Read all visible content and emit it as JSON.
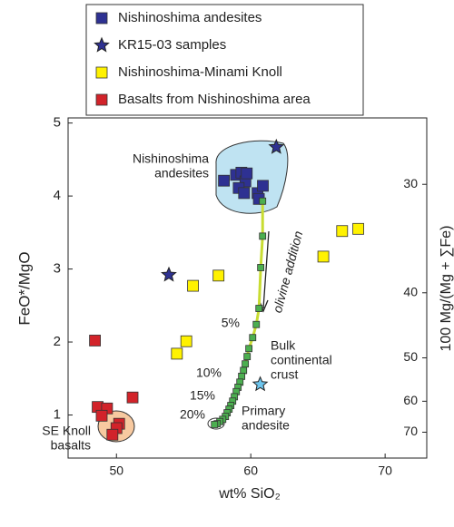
{
  "chart_data": {
    "type": "scatter",
    "x_label": "wt% SiO₂",
    "y_label": "FeO*/MgO",
    "y2_label": "100 Mg/(Mg + ∑Fe)",
    "xlim": [
      46.4,
      73.1
    ],
    "xticks": [
      50,
      60,
      70
    ],
    "ylim": [
      0.41,
      5.07
    ],
    "yticks": [
      1,
      2,
      3,
      4,
      5
    ],
    "y2ticks": [
      30,
      40,
      50,
      60,
      70
    ],
    "series": [
      {
        "name": "Nishinoshima andesites",
        "marker": "square",
        "color": "#2e3192",
        "x": [
          58.0,
          58.9,
          59.3,
          59.6,
          59.1,
          59.5,
          60.5,
          60.9,
          60.6,
          59.7
        ],
        "values": [
          4.21,
          4.29,
          4.32,
          4.2,
          4.11,
          4.04,
          4.04,
          4.14,
          3.96,
          4.31
        ]
      },
      {
        "name": "KR15-03 samples",
        "marker": "star",
        "color": "#2e3192",
        "x": [
          61.9,
          53.9
        ],
        "values": [
          4.67,
          2.92
        ]
      },
      {
        "name": "Nishinoshima-Minami Knoll",
        "marker": "square",
        "color": "#fff200",
        "x": [
          57.6,
          55.7,
          55.2,
          54.5,
          65.4,
          66.8,
          68.0
        ],
        "values": [
          2.91,
          2.77,
          2.01,
          1.84,
          3.17,
          3.52,
          3.55
        ]
      },
      {
        "name": "Basalts from Nishinoshima area",
        "marker": "square",
        "color": "#d2232a",
        "x": [
          48.4,
          48.6,
          49.3,
          51.2,
          48.9,
          50.2,
          50.0,
          49.7
        ],
        "values": [
          2.02,
          1.11,
          1.09,
          1.24,
          0.99,
          0.88,
          0.82,
          0.73
        ]
      },
      {
        "marker": "small-square",
        "color": "#4caf50",
        "line_color": "#c8dc32",
        "x": [
          60.88,
          60.88,
          60.74,
          60.61,
          60.41,
          60.14,
          59.86,
          59.73,
          59.59,
          59.46,
          59.32,
          59.19,
          59.05,
          58.92,
          58.78,
          58.65,
          58.51,
          58.38,
          58.24,
          58.11,
          57.91,
          57.7,
          57.5,
          57.3
        ],
        "values": [
          3.93,
          3.45,
          3.02,
          2.46,
          2.24,
          2.06,
          1.91,
          1.8,
          1.7,
          1.61,
          1.53,
          1.45,
          1.38,
          1.32,
          1.25,
          1.19,
          1.13,
          1.08,
          1.03,
          0.98,
          0.94,
          0.91,
          0.88,
          0.87
        ]
      },
      {
        "marker": "star",
        "color": "#6ec6ee",
        "x": [
          60.7
        ],
        "values": [
          1.42
        ]
      }
    ],
    "annotations": {
      "andesite_field": [
        "Nishinoshima",
        "andesites"
      ],
      "olivine": "olivine addition",
      "crust": [
        "Bulk",
        "continental",
        "crust"
      ],
      "primary": [
        "Primary",
        "andesite"
      ],
      "knoll": [
        "SE Knoll",
        "basalts"
      ],
      "percent": [
        "5%",
        "10%",
        "15%",
        "20%"
      ]
    }
  }
}
